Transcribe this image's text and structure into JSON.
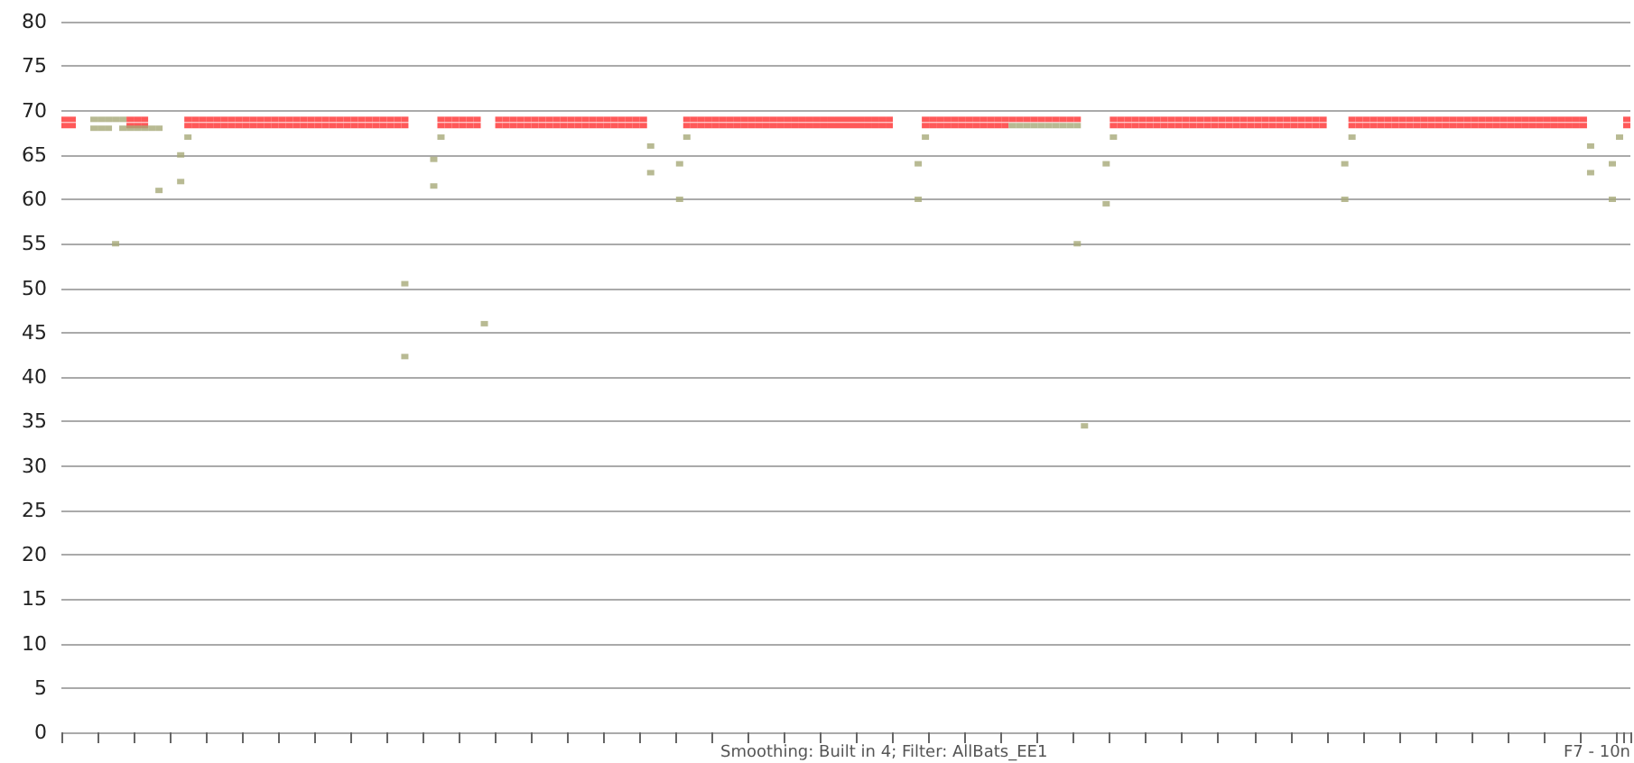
{
  "chart_data": {
    "type": "scatter",
    "categories": [
      null,
      null,
      null,
      null,
      null,
      null,
      null,
      null,
      null,
      null,
      null,
      null,
      null,
      null,
      null,
      null,
      null,
      null,
      null,
      null,
      null,
      null,
      null,
      null,
      null,
      null,
      null,
      null,
      null,
      null,
      null,
      null,
      null,
      null,
      null,
      null,
      null,
      null,
      null,
      null,
      null,
      null,
      null,
      null,
      null,
      null,
      null,
      null,
      null,
      null,
      null,
      null,
      null,
      null,
      null,
      null,
      null,
      null,
      null,
      null,
      null,
      null,
      null,
      null,
      null,
      null,
      null,
      null,
      null,
      null,
      null,
      null,
      null,
      null,
      null,
      null,
      null,
      null,
      null,
      null,
      null,
      null,
      null,
      null,
      null,
      null,
      null,
      null,
      null,
      null,
      null,
      null,
      null,
      null,
      null,
      null,
      null,
      null,
      null,
      null,
      null,
      null,
      null,
      null,
      null,
      null,
      null,
      null,
      null,
      null,
      null,
      null,
      null,
      null,
      null,
      null,
      null,
      null,
      null,
      null,
      null,
      null,
      null,
      null,
      null,
      null,
      null,
      null,
      null,
      null,
      null,
      null,
      null,
      null,
      null,
      null,
      null,
      null,
      null,
      null,
      null,
      null,
      null,
      null,
      null,
      null,
      null,
      null,
      null,
      null,
      null,
      null,
      null,
      null,
      null,
      null,
      null,
      null,
      null,
      null,
      null,
      null,
      null,
      null,
      null,
      null,
      null,
      null,
      null,
      null,
      null,
      null,
      null,
      null,
      null,
      null,
      null,
      null,
      null,
      null,
      null,
      null,
      null,
      null,
      null,
      null,
      null,
      null,
      null,
      null,
      null,
      null,
      null,
      null,
      null,
      null,
      null,
      null,
      null,
      null,
      null,
      null,
      null,
      null,
      null,
      null,
      null,
      null,
      null,
      null,
      null,
      null,
      null,
      null,
      null,
      null,
      null
    ],
    "series": [
      {
        "color": "#ff3030",
        "values": [
          69,
          69,
          null,
          null,
          null,
          null,
          null,
          null,
          null,
          69,
          69,
          69,
          null,
          null,
          null,
          null,
          null,
          69,
          69,
          69,
          69,
          69,
          69,
          69,
          69,
          69,
          69,
          69,
          69,
          69,
          69,
          69,
          69,
          69,
          69,
          69,
          69,
          69,
          69,
          69,
          69,
          69,
          69,
          69,
          69,
          69,
          69,
          69,
          null,
          null,
          null,
          null,
          69,
          69,
          69,
          69,
          69,
          69,
          null,
          null,
          69,
          69,
          69,
          69,
          69,
          69,
          69,
          69,
          69,
          69,
          69,
          69,
          69,
          69,
          69,
          69,
          69,
          69,
          69,
          69,
          69,
          null,
          null,
          null,
          null,
          null,
          69,
          69,
          69,
          69,
          69,
          69,
          69,
          69,
          69,
          69,
          69,
          69,
          69,
          69,
          69,
          69,
          69,
          69,
          69,
          69,
          69,
          69,
          69,
          69,
          69,
          69,
          69,
          69,
          69,
          null,
          null,
          null,
          null,
          69,
          69,
          69,
          69,
          69,
          69,
          69,
          69,
          69,
          69,
          69,
          69,
          69,
          69,
          69,
          69,
          69,
          69,
          69,
          69,
          69,
          69,
          null,
          null,
          null,
          null,
          69,
          69,
          69,
          69,
          69,
          69,
          69,
          69,
          69,
          69,
          69,
          69,
          69,
          69,
          69,
          69,
          69,
          69,
          69,
          69,
          69,
          69,
          69,
          69,
          69,
          69,
          69,
          69,
          69,
          69,
          null,
          null,
          null,
          69,
          69,
          69,
          69,
          69,
          69,
          69,
          69,
          69,
          69,
          69,
          69,
          69,
          69,
          69,
          69,
          69,
          69,
          69,
          69,
          69,
          69,
          69,
          69,
          69,
          69,
          69,
          69,
          69,
          69,
          69,
          69,
          69,
          null,
          null,
          null,
          null,
          null,
          69
        ]
      },
      {
        "color": "#ff3030",
        "values": [
          68.3,
          68.3,
          null,
          null,
          null,
          null,
          null,
          null,
          null,
          68.3,
          68.3,
          68.3,
          null,
          null,
          null,
          null,
          null,
          68.3,
          68.3,
          68.3,
          68.3,
          68.3,
          68.3,
          68.3,
          68.3,
          68.3,
          68.3,
          68.3,
          68.3,
          68.3,
          68.3,
          68.3,
          68.3,
          68.3,
          68.3,
          68.3,
          68.3,
          68.3,
          68.3,
          68.3,
          68.3,
          68.3,
          68.3,
          68.3,
          68.3,
          68.3,
          68.3,
          68.3,
          null,
          null,
          null,
          null,
          68.3,
          68.3,
          68.3,
          68.3,
          68.3,
          68.3,
          null,
          null,
          68.3,
          68.3,
          68.3,
          68.3,
          68.3,
          68.3,
          68.3,
          68.3,
          68.3,
          68.3,
          68.3,
          68.3,
          68.3,
          68.3,
          68.3,
          68.3,
          68.3,
          68.3,
          68.3,
          68.3,
          68.3,
          null,
          null,
          null,
          null,
          null,
          68.3,
          68.3,
          68.3,
          68.3,
          68.3,
          68.3,
          68.3,
          68.3,
          68.3,
          68.3,
          68.3,
          68.3,
          68.3,
          68.3,
          68.3,
          68.3,
          68.3,
          68.3,
          68.3,
          68.3,
          68.3,
          68.3,
          68.3,
          68.3,
          68.3,
          68.3,
          68.3,
          68.3,
          68.3,
          null,
          null,
          null,
          null,
          68.3,
          68.3,
          68.3,
          68.3,
          68.3,
          68.3,
          68.3,
          68.3,
          68.3,
          68.3,
          68.3,
          68.3,
          null,
          null,
          null,
          null,
          null,
          null,
          null,
          null,
          null,
          null,
          null,
          null,
          null,
          null,
          68.3,
          68.3,
          68.3,
          68.3,
          68.3,
          68.3,
          68.3,
          68.3,
          68.3,
          68.3,
          68.3,
          68.3,
          68.3,
          68.3,
          68.3,
          68.3,
          68.3,
          68.3,
          68.3,
          68.3,
          68.3,
          68.3,
          68.3,
          68.3,
          68.3,
          68.3,
          68.3,
          68.3,
          68.3,
          68.3,
          null,
          null,
          null,
          68.3,
          68.3,
          68.3,
          68.3,
          68.3,
          68.3,
          68.3,
          68.3,
          68.3,
          68.3,
          68.3,
          68.3,
          68.3,
          68.3,
          68.3,
          68.3,
          68.3,
          68.3,
          68.3,
          68.3,
          68.3,
          68.3,
          68.3,
          68.3,
          68.3,
          68.3,
          68.3,
          68.3,
          68.3,
          68.3,
          68.3,
          68.3,
          68.3,
          null,
          null,
          null,
          null,
          null,
          68.3
        ]
      },
      {
        "color": "#a6a978",
        "values": [
          null,
          null,
          null,
          null,
          69,
          69,
          69,
          69,
          69,
          null,
          null,
          null,
          null,
          61,
          null,
          null,
          62,
          67,
          null,
          null,
          null,
          null,
          null,
          null,
          null,
          null,
          null,
          null,
          null,
          null,
          null,
          null,
          null,
          null,
          null,
          null,
          null,
          null,
          null,
          null,
          null,
          null,
          null,
          null,
          null,
          null,
          null,
          50.5,
          null,
          null,
          null,
          61.5,
          67,
          null,
          null,
          null,
          null,
          null,
          46,
          null,
          null,
          null,
          null,
          null,
          null,
          null,
          null,
          null,
          null,
          null,
          null,
          null,
          null,
          null,
          null,
          null,
          null,
          null,
          null,
          null,
          null,
          63,
          null,
          null,
          null,
          60,
          67,
          null,
          null,
          null,
          null,
          null,
          null,
          null,
          null,
          null,
          null,
          null,
          null,
          null,
          null,
          null,
          null,
          null,
          null,
          null,
          null,
          null,
          null,
          null,
          null,
          null,
          null,
          null,
          null,
          null,
          null,
          null,
          60,
          67,
          null,
          null,
          null,
          null,
          null,
          null,
          null,
          null,
          null,
          null,
          null,
          null,
          null,
          null,
          null,
          null,
          null,
          null,
          null,
          null,
          55,
          34.5,
          null,
          null,
          59.5,
          67,
          null,
          null,
          null,
          null,
          null,
          null,
          null,
          null,
          null,
          null,
          null,
          null,
          null,
          null,
          null,
          null,
          null,
          null,
          null,
          null,
          null,
          null,
          null,
          null,
          null,
          null,
          null,
          null,
          null,
          null,
          null,
          60,
          67,
          null,
          null,
          null,
          null,
          null,
          null,
          null,
          null,
          null,
          null,
          null,
          null,
          null,
          null,
          null,
          null,
          null,
          null,
          null,
          null,
          null,
          null,
          null,
          null,
          null,
          null,
          null,
          null,
          null,
          null,
          null,
          null,
          63,
          null,
          null,
          60,
          67,
          null
        ]
      },
      {
        "color": "#a6a978",
        "values": [
          null,
          null,
          null,
          null,
          68,
          68,
          68,
          55,
          68,
          68,
          68,
          68,
          68,
          68,
          null,
          null,
          65,
          null,
          null,
          null,
          null,
          null,
          null,
          null,
          null,
          null,
          null,
          null,
          null,
          null,
          null,
          null,
          null,
          null,
          null,
          null,
          null,
          null,
          null,
          null,
          null,
          null,
          null,
          null,
          null,
          null,
          null,
          42.3,
          null,
          null,
          null,
          64.5,
          null,
          null,
          null,
          null,
          null,
          null,
          null,
          null,
          null,
          null,
          null,
          null,
          null,
          null,
          null,
          null,
          null,
          null,
          null,
          null,
          null,
          null,
          null,
          null,
          null,
          null,
          null,
          null,
          null,
          66,
          null,
          null,
          null,
          64,
          null,
          null,
          null,
          null,
          null,
          null,
          null,
          null,
          null,
          null,
          null,
          null,
          null,
          null,
          null,
          null,
          null,
          null,
          null,
          null,
          null,
          null,
          null,
          null,
          null,
          null,
          null,
          null,
          null,
          null,
          null,
          null,
          64,
          null,
          null,
          null,
          null,
          null,
          null,
          null,
          null,
          null,
          null,
          null,
          null,
          68.3,
          68.3,
          68.3,
          68.3,
          68.3,
          68.3,
          68.3,
          68.3,
          68.3,
          68.3,
          null,
          null,
          null,
          64,
          null,
          null,
          null,
          null,
          null,
          null,
          null,
          null,
          null,
          null,
          null,
          null,
          null,
          null,
          null,
          null,
          null,
          null,
          null,
          null,
          null,
          null,
          null,
          null,
          null,
          null,
          null,
          null,
          null,
          null,
          null,
          null,
          64,
          null,
          null,
          null,
          null,
          null,
          null,
          null,
          null,
          null,
          null,
          null,
          null,
          null,
          null,
          null,
          null,
          null,
          null,
          null,
          null,
          null,
          null,
          null,
          null,
          null,
          null,
          null,
          null,
          null,
          null,
          null,
          null,
          null,
          66,
          null,
          null,
          64,
          null,
          null
        ]
      }
    ],
    "ylim": [
      0,
      80
    ],
    "yticks": [
      0,
      5,
      10,
      15,
      20,
      25,
      30,
      35,
      40,
      45,
      50,
      55,
      60,
      65,
      70,
      75,
      80
    ],
    "grid": "y",
    "marker": "square",
    "tick_labels": "y",
    "annotations": [
      "Smoothing: Built in 4; Filter: AllBats_EE1",
      "F7 - 10n"
    ]
  }
}
